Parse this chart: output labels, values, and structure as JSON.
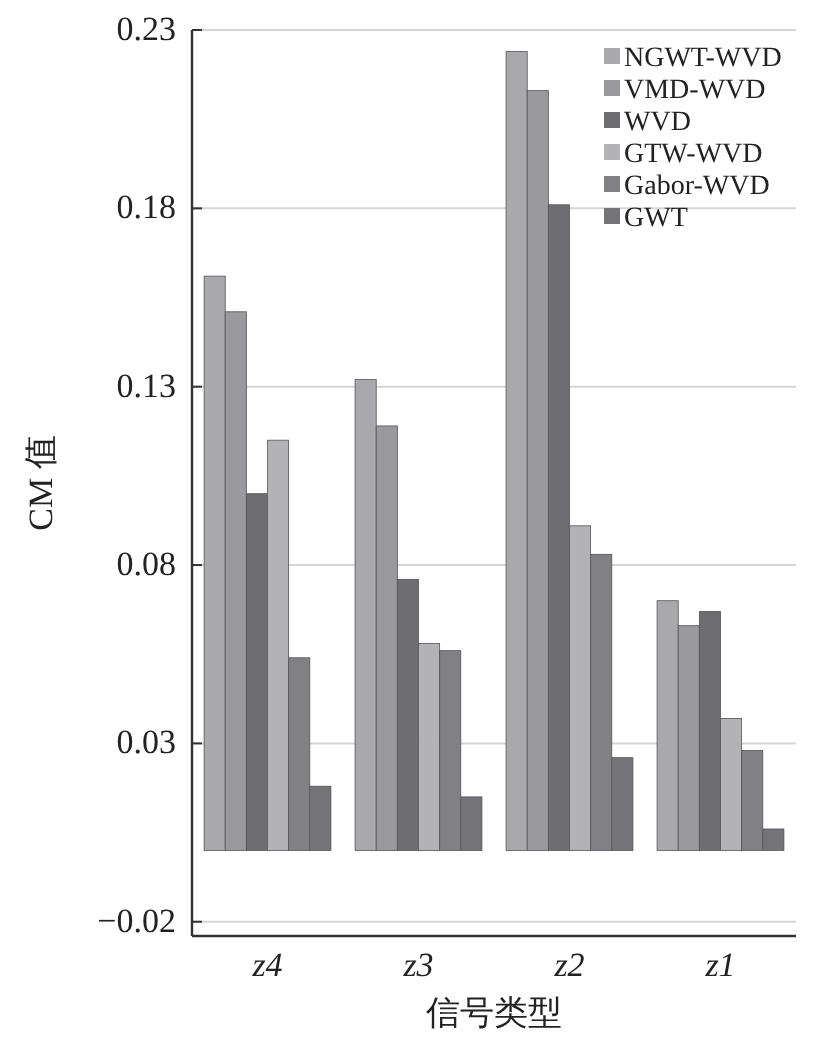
{
  "chart_data": {
    "type": "bar",
    "ylabel": "CM 值",
    "xlabel": "信号类型",
    "categories": [
      "z4",
      "z3",
      "z2",
      "z1"
    ],
    "series": [
      {
        "name": "NGWT-WVD",
        "color": "#a9a9ad",
        "values": [
          0.161,
          0.132,
          0.224,
          0.07
        ]
      },
      {
        "name": "VMD-WVD",
        "color": "#9a9a9e",
        "values": [
          0.151,
          0.119,
          0.213,
          0.063
        ]
      },
      {
        "name": "WVD",
        "color": "#6e6e72",
        "values": [
          0.1,
          0.076,
          0.181,
          0.067
        ]
      },
      {
        "name": "GTW-WVD",
        "color": "#b3b3b7",
        "values": [
          0.115,
          0.058,
          0.091,
          0.037
        ]
      },
      {
        "name": "Gabor-WVD",
        "color": "#818185",
        "values": [
          0.054,
          0.056,
          0.083,
          0.028
        ]
      },
      {
        "name": "GWT",
        "color": "#747478",
        "values": [
          0.018,
          0.015,
          0.026,
          0.006
        ]
      }
    ],
    "ylim": [
      -0.024,
      0.23
    ],
    "yticks": [
      -0.02,
      0.03,
      0.08,
      0.13,
      0.18,
      0.23
    ],
    "grid": "y",
    "legend": "top right"
  }
}
